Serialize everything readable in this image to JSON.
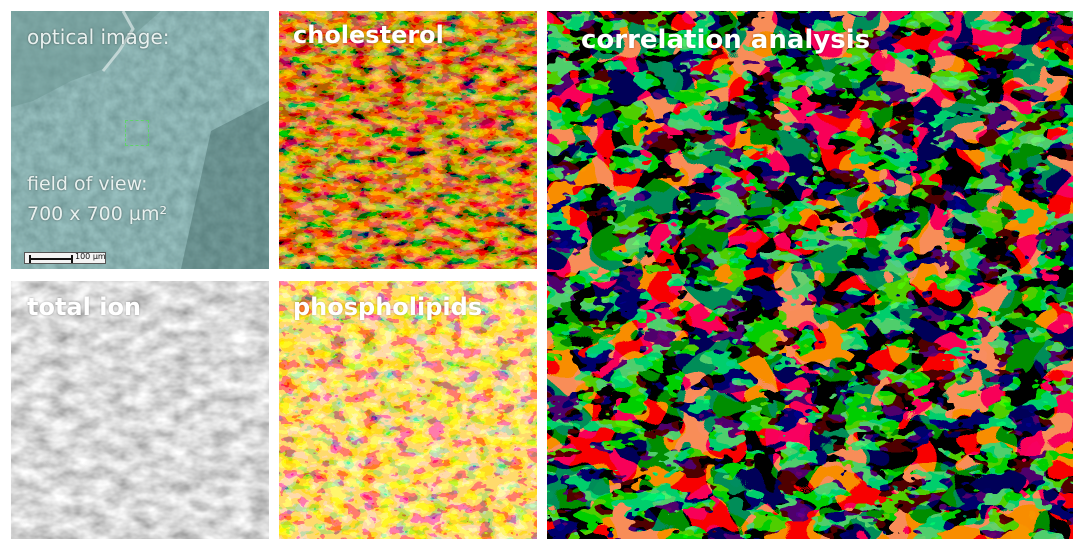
{
  "panels": {
    "optical": {
      "label": "optical image:",
      "fov_line1": "field of view:",
      "fov_line2": "700 x 700 µm²",
      "scale_label": "100 µm"
    },
    "cholesterol": {
      "label": "cholesterol"
    },
    "total_ion": {
      "label": "total ion"
    },
    "phospholipids": {
      "label": "phospholipids"
    },
    "correlation": {
      "label": "correlation analysis"
    }
  },
  "colors": {
    "optical_bg": "#3c6a66",
    "cholesterol_hot": "#f09a1a",
    "phospholipids_hot": "#fff17a",
    "correlation_green": "#22d640",
    "correlation_red": "#f0461c",
    "background": "#ffffff"
  }
}
